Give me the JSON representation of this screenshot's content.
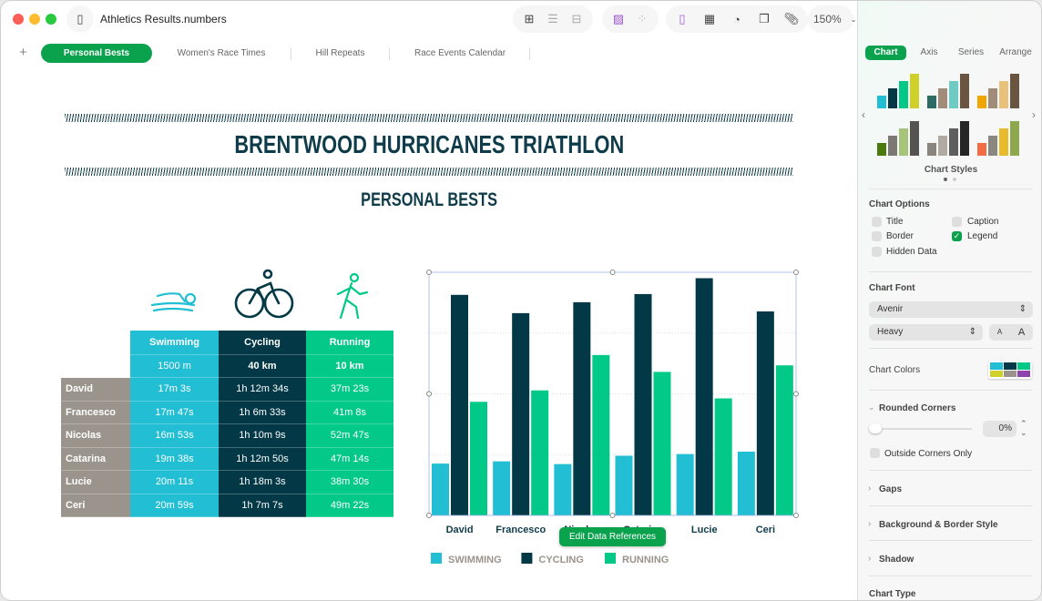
{
  "window": {
    "title": "Athletics Results.numbers",
    "zoom": "150%"
  },
  "sheets": [
    {
      "label": "Personal Bests",
      "active": true
    },
    {
      "label": "Women's Race Times"
    },
    {
      "label": "Hill Repeats"
    },
    {
      "label": "Race Events Calendar"
    }
  ],
  "doc": {
    "title": "BRENTWOOD HURRICANES TRIATHLON",
    "subtitle": "PERSONAL BESTS"
  },
  "table": {
    "columns": [
      {
        "name": "Swimming",
        "distance": "1500 m"
      },
      {
        "name": "Cycling",
        "distance": "40 km"
      },
      {
        "name": "Running",
        "distance": "10 km"
      }
    ],
    "rows": [
      {
        "name": "David",
        "values": [
          "17m 3s",
          "1h 12m 34s",
          "37m 23s"
        ]
      },
      {
        "name": "Francesco",
        "values": [
          "17m 47s",
          "1h 6m 33s",
          "41m 8s"
        ]
      },
      {
        "name": "Nicolas",
        "values": [
          "16m 53s",
          "1h 10m 9s",
          "52m 47s"
        ]
      },
      {
        "name": "Catarina",
        "values": [
          "19m 38s",
          "1h 12m 50s",
          "47m 14s"
        ]
      },
      {
        "name": "Lucie",
        "values": [
          "20m 11s",
          "1h 18m 3s",
          "38m 30s"
        ]
      },
      {
        "name": "Ceri",
        "values": [
          "20m 59s",
          "1h 7m 7s",
          "49m 22s"
        ]
      }
    ]
  },
  "chart_data": {
    "type": "bar",
    "categories": [
      "David",
      "Francesco",
      "Nicolas",
      "Catarina",
      "Lucie",
      "Ceri"
    ],
    "series": [
      {
        "name": "SWIMMING",
        "color": "#22bfd4",
        "values": [
          17.05,
          17.78,
          16.88,
          19.63,
          20.18,
          20.98
        ]
      },
      {
        "name": "CYCLING",
        "color": "#033947",
        "values": [
          72.57,
          66.55,
          70.15,
          72.83,
          78.05,
          67.12
        ]
      },
      {
        "name": "RUNNING",
        "color": "#02c987",
        "values": [
          37.38,
          41.13,
          52.78,
          47.23,
          38.5,
          49.37
        ]
      }
    ],
    "ylim": [
      0,
      80
    ],
    "grid": true,
    "legend": "bottom",
    "xlabel": "",
    "ylabel": ""
  },
  "edit_data_button": "Edit Data References",
  "sidebar": {
    "tabs": [
      "Chart",
      "Axis",
      "Series",
      "Arrange"
    ],
    "chart_styles_label": "Chart Styles",
    "chart_options_label": "Chart Options",
    "options": [
      {
        "label": "Title",
        "checked": false
      },
      {
        "label": "Caption",
        "checked": false
      },
      {
        "label": "Border",
        "checked": false
      },
      {
        "label": "Legend",
        "checked": true
      },
      {
        "label": "Hidden Data",
        "checked": false
      }
    ],
    "chart_font_label": "Chart Font",
    "font": "Avenir",
    "weight": "Heavy",
    "size_small": "A",
    "size_large": "A",
    "chart_colors_label": "Chart Colors",
    "chart_colors": [
      "#22bfd4",
      "#033947",
      "#02c987",
      "#cfd12a",
      "#9b948d",
      "#8e44ad"
    ],
    "rounded_corners_label": "Rounded Corners",
    "rounded_value": "0%",
    "outside_corners_label": "Outside Corners Only",
    "sections": [
      "Gaps",
      "Background & Border Style",
      "Shadow"
    ],
    "chart_type_label": "Chart Type"
  }
}
